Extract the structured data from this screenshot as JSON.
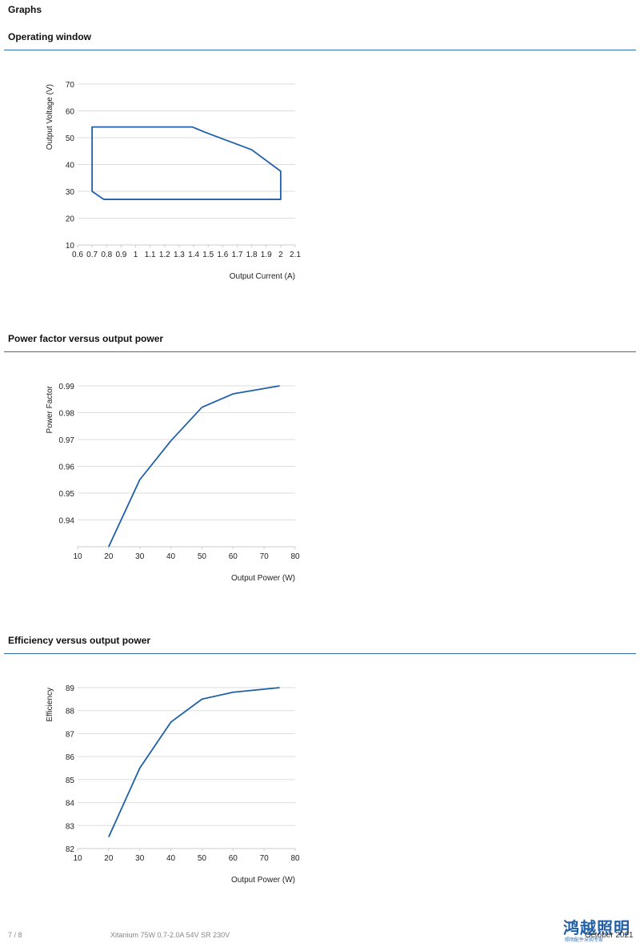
{
  "page_title": "Graphs",
  "sections": [
    {
      "title": "Operating window"
    },
    {
      "title": "Power factor versus output power"
    },
    {
      "title": "Efficiency versus output power"
    }
  ],
  "footer": {
    "page": "7 / 8",
    "product": "Xitanium 75W 0.7-2.0A 54V SR 230V",
    "date": "October 2021",
    "logo": "鸿越照明",
    "logo_sub": "照明配件采购专家"
  },
  "colors": {
    "line": "#1f5fa8",
    "grid": "#dddddd",
    "rule": "#2f6fb0"
  },
  "chart_data": [
    {
      "type": "line",
      "xlabel": "Output Current (A)",
      "ylabel": "Output Voltage (V)",
      "xlim": [
        0.6,
        2.1
      ],
      "ylim": [
        10,
        70
      ],
      "xticks": [
        0.6,
        0.7,
        0.8,
        0.9,
        1,
        1.1,
        1.2,
        1.3,
        1.4,
        1.5,
        1.6,
        1.7,
        1.8,
        1.9,
        2,
        2.1
      ],
      "yticks": [
        10,
        20,
        30,
        40,
        50,
        60,
        70
      ],
      "xtick_labels": [
        "0.6",
        "0.7",
        "0.8",
        "0.9",
        "1",
        "1.1",
        "1.2",
        "1.3",
        "1.4",
        "1.5",
        "1.6",
        "1.7",
        "1.8",
        "1.9",
        "2",
        "2.1"
      ],
      "ytick_labels": [
        "10",
        "20",
        "30",
        "40",
        "50",
        "60",
        "70"
      ],
      "closed": true,
      "x": [
        0.7,
        1.39,
        1.48,
        1.8,
        2.0,
        2.0,
        0.78,
        0.7
      ],
      "y": [
        54,
        54,
        52,
        45.5,
        37.5,
        27,
        27,
        30
      ],
      "grid": true
    },
    {
      "type": "line",
      "xlabel": "Output Power (W)",
      "ylabel": "Power Factor",
      "xlim": [
        10,
        80
      ],
      "ylim": [
        0.93,
        0.99
      ],
      "xticks": [
        10,
        20,
        30,
        40,
        50,
        60,
        70,
        80
      ],
      "yticks": [
        0.94,
        0.95,
        0.96,
        0.97,
        0.98,
        0.99
      ],
      "xtick_labels": [
        "10",
        "20",
        "30",
        "40",
        "50",
        "60",
        "70",
        "80"
      ],
      "ytick_labels": [
        "0.94",
        "0.95",
        "0.96",
        "0.97",
        "0.98",
        "0.99"
      ],
      "x": [
        20,
        30,
        40,
        50,
        60,
        75
      ],
      "y": [
        0.93,
        0.955,
        0.9695,
        0.982,
        0.987,
        0.99
      ],
      "grid": true
    },
    {
      "type": "line",
      "xlabel": "Output Power (W)",
      "ylabel": "Efficiency",
      "xlim": [
        10,
        80
      ],
      "ylim": [
        82,
        89
      ],
      "xticks": [
        10,
        20,
        30,
        40,
        50,
        60,
        70,
        80
      ],
      "yticks": [
        82,
        83,
        84,
        85,
        86,
        87,
        88,
        89
      ],
      "xtick_labels": [
        "10",
        "20",
        "30",
        "40",
        "50",
        "60",
        "70",
        "80"
      ],
      "ytick_labels": [
        "82",
        "83",
        "84",
        "85",
        "86",
        "87",
        "88",
        "89"
      ],
      "x": [
        20,
        30,
        40,
        50,
        60,
        75
      ],
      "y": [
        82.5,
        85.5,
        87.5,
        88.5,
        88.8,
        89
      ],
      "grid": true
    }
  ]
}
